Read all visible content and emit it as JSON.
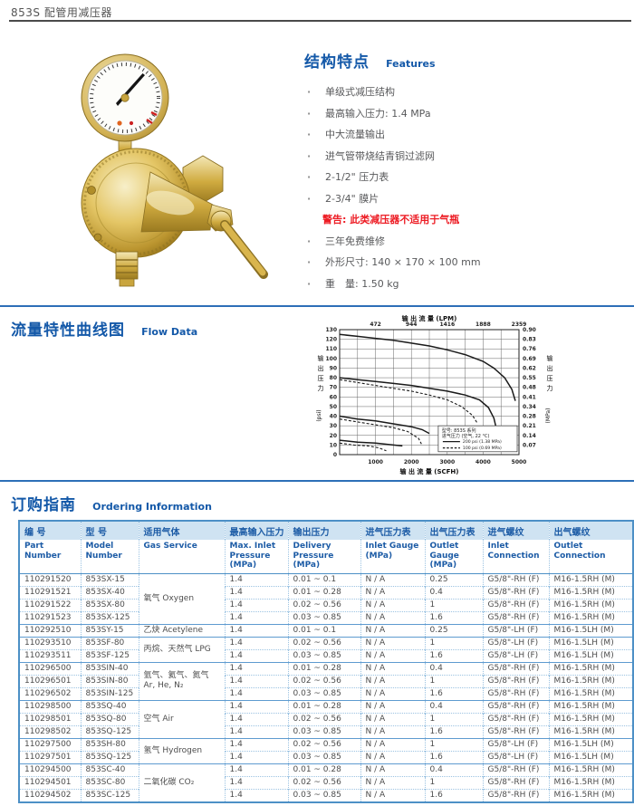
{
  "page": {
    "title": "853S 配管用减压器"
  },
  "colors": {
    "accent_blue": "#1358a8",
    "divider_blue": "#2d6fb7",
    "table_header_bg": "#cfe3f2",
    "warning_red": "#ed1c24",
    "brass_gold": "#d2ae4a"
  },
  "features": {
    "heading_cn": "结构特点",
    "heading_en": "Features",
    "bullet_char": "·",
    "items": [
      {
        "style": "bullet",
        "text": "单级式减压结构"
      },
      {
        "style": "bullet",
        "text": "最高输入压力: 1.4 MPa"
      },
      {
        "style": "bullet",
        "text": "中大流量输出"
      },
      {
        "style": "bullet",
        "text": "进气管带烧结青铜过滤网"
      },
      {
        "style": "bullet",
        "text": "2-1/2\" 压力表"
      },
      {
        "style": "bullet",
        "text": "2-3/4\" 膜片"
      },
      {
        "style": "warning",
        "text": "警告: 此类减压器不适用于气瓶"
      },
      {
        "style": "bullet",
        "text": "三年免费维修"
      },
      {
        "style": "bullet",
        "text": "外形尺寸: 140 × 170 × 100 mm"
      },
      {
        "style": "bullet",
        "text": "重　量: 1.50 kg"
      }
    ]
  },
  "flow": {
    "heading_cn": "流量特性曲线图",
    "heading_en": "Flow Data",
    "chart_data": {
      "type": "line",
      "x_max": 5000,
      "y_left_max": 130,
      "x_axis_top": {
        "label": "输 出 流 量 (LPM)",
        "ticks": [
          "472",
          "944",
          "1416",
          "1888",
          "2359"
        ]
      },
      "x_axis_bottom": {
        "label": "输 出 流 量 (SCFH)",
        "ticks": [
          "1000",
          "2000",
          "3000",
          "4000",
          "5000"
        ]
      },
      "y_axis_left": {
        "label_cn": "输出压力",
        "unit": "(psi)",
        "ticks": [
          0,
          10,
          20,
          30,
          40,
          50,
          60,
          70,
          80,
          90,
          100,
          110,
          120,
          130
        ]
      },
      "y_axis_right": {
        "label_cn": "输出压力",
        "unit": "(MPa)",
        "ticks": [
          "0.90",
          "0.83",
          "0.76",
          "0.69",
          "0.62",
          "0.55",
          "0.48",
          "0.41",
          "0.34",
          "0.28",
          "0.21",
          "0.14",
          "0.07"
        ]
      },
      "legend": {
        "model": "型号: 853S 系列",
        "condition": "进气压力 (空气, 22 °C)",
        "entries": [
          {
            "style": "solid",
            "label": "200 psi (1.38 MPa)"
          },
          {
            "style": "dashed",
            "label": "100 psi (0.69 MPa)"
          }
        ]
      },
      "series": [
        {
          "name": "set-125psi-solid",
          "style": "solid",
          "points": [
            [
              0,
              125
            ],
            [
              500,
              123
            ],
            [
              1000,
              121
            ],
            [
              1500,
              119
            ],
            [
              2000,
              116
            ],
            [
              2500,
              113
            ],
            [
              3000,
              109
            ],
            [
              3500,
              104
            ],
            [
              4000,
              97
            ],
            [
              4300,
              90
            ],
            [
              4600,
              80
            ],
            [
              4800,
              68
            ],
            [
              4900,
              56
            ]
          ]
        },
        {
          "name": "set-80psi-solid",
          "style": "solid",
          "points": [
            [
              0,
              80
            ],
            [
              500,
              78
            ],
            [
              1000,
              76
            ],
            [
              1500,
              74
            ],
            [
              2000,
              72
            ],
            [
              2500,
              69
            ],
            [
              3000,
              66
            ],
            [
              3500,
              62
            ],
            [
              3900,
              57
            ],
            [
              4150,
              49
            ],
            [
              4300,
              38
            ],
            [
              4350,
              30
            ]
          ]
        },
        {
          "name": "set-80psi-dashed",
          "style": "dashed",
          "points": [
            [
              0,
              78
            ],
            [
              500,
              75
            ],
            [
              1000,
              72
            ],
            [
              1500,
              69
            ],
            [
              2000,
              66
            ],
            [
              2500,
              62
            ],
            [
              3000,
              57
            ],
            [
              3400,
              50
            ],
            [
              3700,
              41
            ],
            [
              3850,
              32
            ]
          ]
        },
        {
          "name": "set-40psi-solid",
          "style": "solid",
          "points": [
            [
              0,
              40
            ],
            [
              500,
              37
            ],
            [
              1000,
              35
            ],
            [
              1500,
              32
            ],
            [
              2000,
              29
            ],
            [
              2300,
              26
            ],
            [
              2500,
              22
            ]
          ]
        },
        {
          "name": "set-40psi-dashed",
          "style": "dashed",
          "points": [
            [
              0,
              37
            ],
            [
              500,
              34
            ],
            [
              1000,
              31
            ],
            [
              1500,
              28
            ],
            [
              1900,
              24
            ],
            [
              2200,
              17
            ],
            [
              2280,
              11
            ]
          ]
        },
        {
          "name": "set-15psi-solid",
          "style": "solid",
          "points": [
            [
              0,
              15
            ],
            [
              500,
              13
            ],
            [
              1000,
              12
            ],
            [
              1500,
              10
            ],
            [
              1750,
              9
            ]
          ]
        },
        {
          "name": "set-15psi-dashed",
          "style": "dashed",
          "points": [
            [
              0,
              12
            ],
            [
              400,
              10
            ],
            [
              800,
              9
            ],
            [
              1100,
              7
            ],
            [
              1300,
              4
            ]
          ]
        }
      ]
    }
  },
  "ordering": {
    "heading_cn": "订购指南",
    "heading_en": "Ordering Information",
    "columns": [
      {
        "cn": "编 号",
        "en": "Part Number"
      },
      {
        "cn": "型 号",
        "en": "Model Number"
      },
      {
        "cn": "适用气体",
        "en": "Gas Service"
      },
      {
        "cn": "最高输入压力",
        "en": "Max. Inlet Pressure (MPa)"
      },
      {
        "cn": "输出压力",
        "en": "Delivery Pressure (MPa)"
      },
      {
        "cn": "进气压力表",
        "en": "Inlet Gauge (MPa)"
      },
      {
        "cn": "出气压力表",
        "en": "Outlet Gauge (MPa)"
      },
      {
        "cn": "进气螺纹",
        "en": "Inlet Connection"
      },
      {
        "cn": "出气螺纹",
        "en": "Outlet Connection"
      }
    ],
    "groups": [
      {
        "gas": [
          "氧气  Oxygen"
        ],
        "rows": [
          [
            "110291520",
            "853SX-15",
            "1.4",
            "0.01 ~ 0.1",
            "N / A",
            "0.25",
            "G5/8\"-RH (F)",
            "M16-1.5RH (M)"
          ],
          [
            "110291521",
            "853SX-40",
            "1.4",
            "0.01 ~ 0.28",
            "N / A",
            "0.4",
            "G5/8\"-RH (F)",
            "M16-1.5RH (M)"
          ],
          [
            "110291522",
            "853SX-80",
            "1.4",
            "0.02 ~ 0.56",
            "N / A",
            "1",
            "G5/8\"-RH (F)",
            "M16-1.5RH (M)"
          ],
          [
            "110291523",
            "853SX-125",
            "1.4",
            "0.03 ~ 0.85",
            "N / A",
            "1.6",
            "G5/8\"-RH (F)",
            "M16-1.5RH (M)"
          ]
        ]
      },
      {
        "gas": [
          "乙炔 Acetylene"
        ],
        "rows": [
          [
            "110292510",
            "853SY-15",
            "1.4",
            "0.01 ~ 0.1",
            "N / A",
            "0.25",
            "G5/8\"-LH (F)",
            "M16-1.5LH (M)"
          ]
        ]
      },
      {
        "gas": [
          "丙烷、天然气 LPG"
        ],
        "rows": [
          [
            "110293510",
            "853SF-80",
            "1.4",
            "0.02 ~ 0.56",
            "N / A",
            "1",
            "G5/8\"-LH (F)",
            "M16-1.5LH (M)"
          ],
          [
            "110293511",
            "853SF-125",
            "1.4",
            "0.03 ~ 0.85",
            "N / A",
            "1.6",
            "G5/8\"-LH (F)",
            "M16-1.5LH (M)"
          ]
        ]
      },
      {
        "gas": [
          "氩气、氦气、氮气",
          "Ar, He, N₂"
        ],
        "rows": [
          [
            "110296500",
            "853SIN-40",
            "1.4",
            "0.01 ~ 0.28",
            "N / A",
            "0.4",
            "G5/8\"-RH (F)",
            "M16-1.5RH (M)"
          ],
          [
            "110296501",
            "853SIN-80",
            "1.4",
            "0.02 ~ 0.56",
            "N / A",
            "1",
            "G5/8\"-RH (F)",
            "M16-1.5RH (M)"
          ],
          [
            "110296502",
            "853SIN-125",
            "1.4",
            "0.03 ~ 0.85",
            "N / A",
            "1.6",
            "G5/8\"-RH (F)",
            "M16-1.5RH (M)"
          ]
        ]
      },
      {
        "gas": [
          "空气 Air"
        ],
        "rows": [
          [
            "110298500",
            "853SQ-40",
            "1.4",
            "0.01 ~ 0.28",
            "N / A",
            "0.4",
            "G5/8\"-RH (F)",
            "M16-1.5RH (M)"
          ],
          [
            "110298501",
            "853SQ-80",
            "1.4",
            "0.02 ~ 0.56",
            "N / A",
            "1",
            "G5/8\"-RH (F)",
            "M16-1.5RH (M)"
          ],
          [
            "110298502",
            "853SQ-125",
            "1.4",
            "0.03 ~ 0.85",
            "N / A",
            "1.6",
            "G5/8\"-RH (F)",
            "M16-1.5RH (M)"
          ]
        ]
      },
      {
        "gas": [
          "氢气 Hydrogen"
        ],
        "rows": [
          [
            "110297500",
            "853SH-80",
            "1.4",
            "0.02 ~ 0.56",
            "N / A",
            "1",
            "G5/8\"-LH (F)",
            "M16-1.5LH (M)"
          ],
          [
            "110297501",
            "853SQ-125",
            "1.4",
            "0.03 ~ 0.85",
            "N / A",
            "1.6",
            "G5/8\"-LH (F)",
            "M16-1.5LH (M)"
          ]
        ]
      },
      {
        "gas": [
          "二氧化碳 CO₂"
        ],
        "rows": [
          [
            "110294500",
            "853SC-40",
            "1.4",
            "0.01 ~ 0.28",
            "N / A",
            "0.4",
            "G5/8\"-RH (F)",
            "M16-1.5RH (M)"
          ],
          [
            "110294501",
            "853SC-80",
            "1.4",
            "0.02 ~ 0.56",
            "N / A",
            "1",
            "G5/8\"-RH (F)",
            "M16-1.5RH (M)"
          ],
          [
            "110294502",
            "853SC-125",
            "1.4",
            "0.03 ~ 0.85",
            "N / A",
            "1.6",
            "G5/8\"-RH (F)",
            "M16-1.5RH (M)"
          ]
        ]
      }
    ]
  }
}
